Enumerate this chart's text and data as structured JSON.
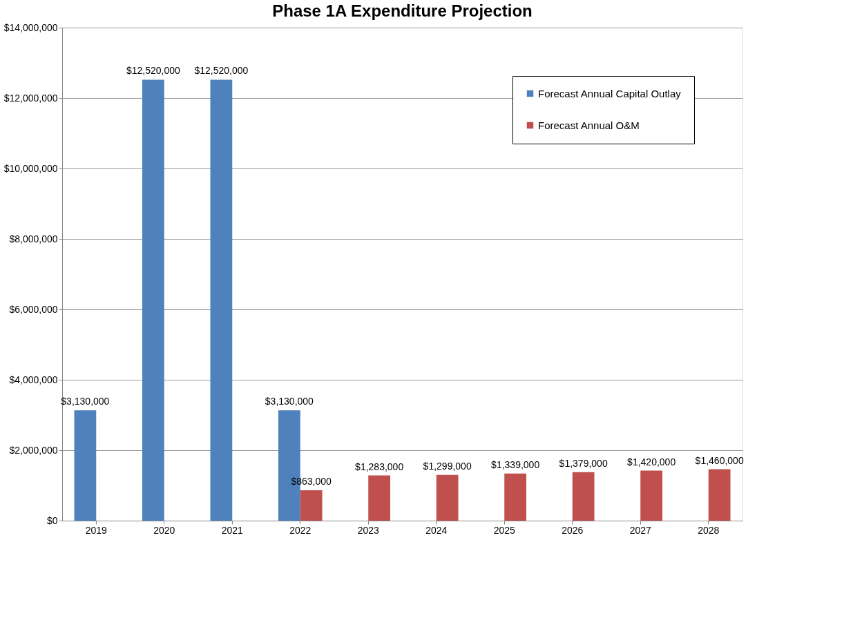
{
  "chart_data": {
    "type": "bar",
    "title": "Phase 1A Expenditure Projection",
    "categories": [
      "2019",
      "2020",
      "2021",
      "2022",
      "2023",
      "2024",
      "2025",
      "2026",
      "2027",
      "2028"
    ],
    "series": [
      {
        "name": "Forecast Annual Capital Outlay",
        "color": "#4f81bd",
        "values": [
          3130000,
          12520000,
          12520000,
          3130000,
          null,
          null,
          null,
          null,
          null,
          null
        ],
        "value_labels": [
          "$3,130,000",
          "$12,520,000",
          "$12,520,000",
          "$3,130,000",
          null,
          null,
          null,
          null,
          null,
          null
        ]
      },
      {
        "name": "Forecast Annual O&M",
        "color": "#c0504d",
        "values": [
          null,
          null,
          null,
          863000,
          1283000,
          1299000,
          1339000,
          1379000,
          1420000,
          1460000
        ],
        "value_labels": [
          null,
          null,
          null,
          "$863,000",
          "$1,283,000",
          "$1,299,000",
          "$1,339,000",
          "$1,379,000",
          "$1,420,000",
          "$1,460,000"
        ]
      }
    ],
    "ylim": [
      0,
      14000000
    ],
    "yticks": [
      {
        "value": 0,
        "label": "$0"
      },
      {
        "value": 2000000,
        "label": "$2,000,000"
      },
      {
        "value": 4000000,
        "label": "$4,000,000"
      },
      {
        "value": 6000000,
        "label": "$6,000,000"
      },
      {
        "value": 8000000,
        "label": "$8,000,000"
      },
      {
        "value": 10000000,
        "label": "$10,000,000"
      },
      {
        "value": 12000000,
        "label": "$12,000,000"
      },
      {
        "value": 14000000,
        "label": "$14,000,000"
      }
    ],
    "grid": "y",
    "legend": "top right"
  }
}
